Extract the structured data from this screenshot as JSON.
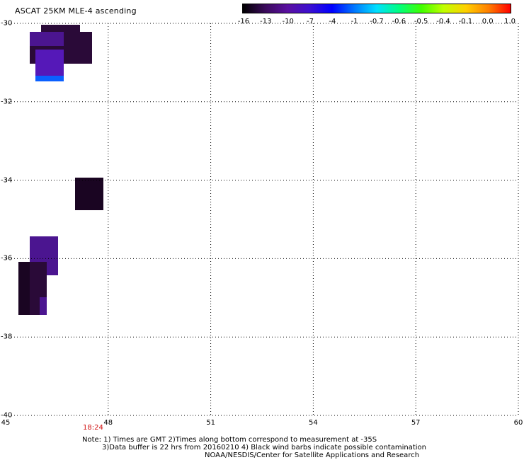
{
  "title": "ASCAT 25KM MLE-4 ascending",
  "colorbar": {
    "labels": [
      "-16",
      "-13",
      "-10",
      "-7",
      "-4",
      "-1",
      "-0.7",
      "-0.6",
      "-0.5",
      "-0.4",
      "-0.1",
      "0.0",
      "1.0"
    ],
    "colors": [
      "#000000",
      "#3a0a5a",
      "#5a10a0",
      "#3c10d0",
      "#0000ff",
      "#0078ff",
      "#00e0ff",
      "#00ff80",
      "#40ff00",
      "#c0ff00",
      "#ffd000",
      "#ff8000",
      "#ff0000"
    ]
  },
  "axes": {
    "lat_labels": [
      "-30",
      "-32",
      "-34",
      "-36",
      "-38",
      "-40"
    ],
    "lon_labels": [
      "45",
      "48",
      "51",
      "54",
      "57",
      "60"
    ]
  },
  "time_label": "18:24",
  "notes": {
    "line1": "Note: 1) Times are GMT 2)Times along bottom correspond to measurement at -35S",
    "line2": "3)Data buffer is 22 hrs from 20160210 4) Black wind barbs indicate possible contamination",
    "line3": "NOAA/NESDIS/Center for Satellite Applications and Research"
  },
  "cell_colors": {
    "dark": "#2a0a38",
    "purple": "#4b1590",
    "violet": "#5518b8",
    "blue": "#0a60ff",
    "darkest": "#1a0522"
  }
}
